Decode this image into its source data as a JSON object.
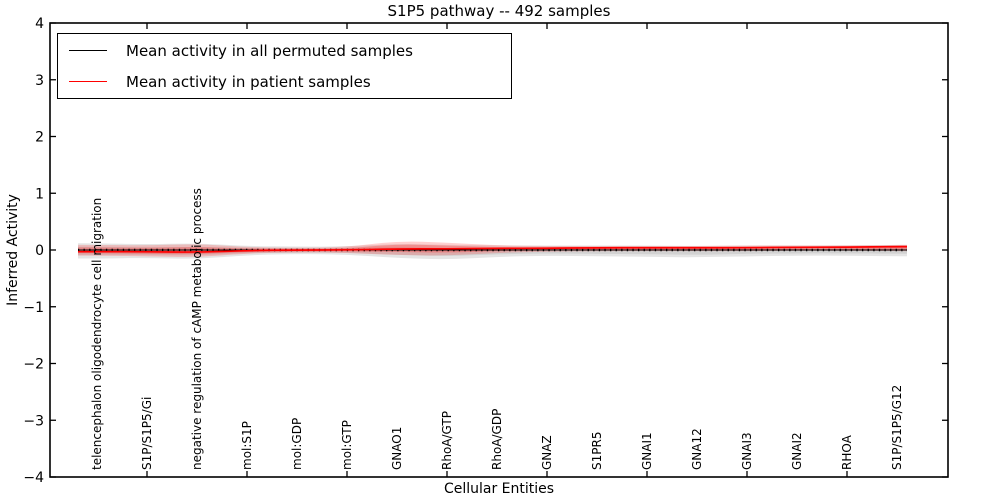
{
  "figure": {
    "title": "S1P5 pathway -- 492 samples",
    "xlabel": "Cellular Entities",
    "ylabel": "Inferred Activity"
  },
  "legend": {
    "position": "upper left",
    "items": [
      {
        "label": "Mean activity in all permuted samples",
        "color": "#000000"
      },
      {
        "label": "Mean activity in patient samples",
        "color": "#ff0000"
      }
    ]
  },
  "chart_data": {
    "type": "line",
    "title": "S1P5 pathway -- 492 samples",
    "xlabel": "Cellular Entities",
    "ylabel": "Inferred Activity",
    "ylim": [
      -4,
      4
    ],
    "y_tick_values": [
      4,
      3,
      2,
      1,
      0,
      -1,
      -2,
      -3,
      -4
    ],
    "y_tick_labels": [
      "4",
      "3",
      "2",
      "1",
      "0",
      "−1",
      "−2",
      "−3",
      "−4"
    ],
    "grid": false,
    "legend_position": "upper left",
    "categories": [
      "telencephalon oligodendrocyte cell migration",
      "S1P/S1P5/Gi",
      "negative regulation of cAMP metabolic process",
      "mol:S1P",
      "mol:GDP",
      "mol:GTP",
      "GNAO1",
      "RhoA/GTP",
      "RhoA/GDP",
      "GNAZ",
      "S1PR5",
      "GNAI1",
      "GNA12",
      "GNAI3",
      "GNAI2",
      "RHOA",
      "S1P/S1P5/G12"
    ],
    "series": [
      {
        "name": "Mean activity in all permuted samples",
        "color": "#000000",
        "style": "dotted-markers",
        "values": [
          0,
          0,
          0,
          0,
          0,
          0,
          0,
          0,
          0,
          0,
          0,
          0,
          0,
          0,
          0,
          0,
          0
        ]
      },
      {
        "name": "Mean activity in patient samples",
        "color": "#ff0000",
        "style": "solid",
        "values": [
          -0.03,
          -0.03,
          -0.04,
          -0.01,
          0.0,
          0.0,
          0.02,
          0.02,
          0.03,
          0.03,
          0.04,
          0.04,
          0.04,
          0.04,
          0.05,
          0.05,
          0.06
        ]
      }
    ],
    "bands": [
      {
        "name": "permuted samples range",
        "color_outer": "rgba(125,125,125,0.20)",
        "color_inner": "rgba(125,125,125,0.18)",
        "upper": [
          0.12,
          0.1,
          0.12,
          0.07,
          0.06,
          0.06,
          0.11,
          0.09,
          0.08,
          0.08,
          0.08,
          0.08,
          0.07,
          0.08,
          0.08,
          0.08,
          0.09
        ],
        "lower": [
          -0.15,
          -0.14,
          -0.16,
          -0.09,
          -0.07,
          -0.08,
          -0.14,
          -0.17,
          -0.12,
          -0.1,
          -0.11,
          -0.12,
          -0.13,
          -0.11,
          -0.1,
          -0.1,
          -0.11
        ]
      },
      {
        "name": "patient samples range",
        "color_outer": "rgba(255,20,20,0.20)",
        "color_inner": "rgba(255,20,20,0.26)",
        "upper": [
          0.09,
          0.08,
          0.11,
          0.05,
          0.04,
          0.05,
          0.16,
          0.13,
          0.08,
          0.07,
          0.07,
          0.07,
          0.07,
          0.08,
          0.08,
          0.08,
          0.09
        ],
        "lower": [
          -0.1,
          -0.11,
          -0.13,
          -0.06,
          -0.04,
          -0.05,
          -0.09,
          -0.1,
          -0.05,
          -0.03,
          -0.02,
          -0.02,
          -0.02,
          -0.02,
          -0.01,
          -0.01,
          -0.02
        ]
      }
    ]
  }
}
